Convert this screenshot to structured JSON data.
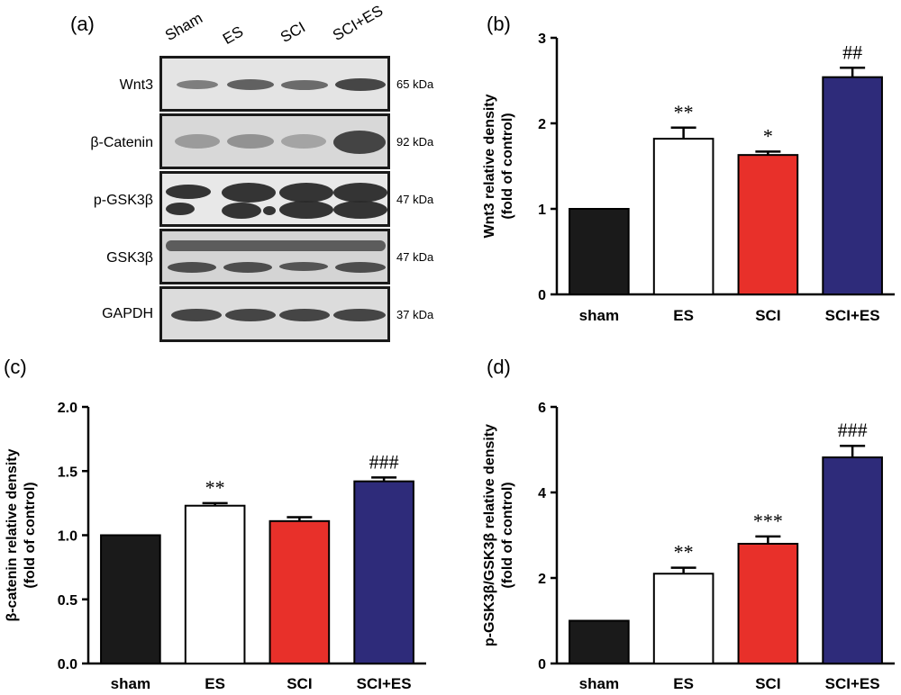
{
  "blot": {
    "panel_label": "(a)",
    "lanes": [
      "Sham",
      "ES",
      "SCI",
      "SCI+ES"
    ],
    "rows": [
      {
        "label": "Wnt3",
        "kda": "65 kDa"
      },
      {
        "label": "β-Catenin",
        "kda": "92 kDa"
      },
      {
        "label": "p-GSK3β",
        "kda": "47 kDa"
      },
      {
        "label": "GSK3β",
        "kda": "47 kDa"
      },
      {
        "label": "GAPDH",
        "kda": "37 kDa"
      }
    ]
  },
  "colors": {
    "sham": "#1a1a1a",
    "ES": "#ffffff",
    "SCI": "#e8302a",
    "SCI+ES": "#2e2b7a"
  },
  "chart_data": [
    {
      "panel_label": "(b)",
      "type": "bar",
      "categories": [
        "sham",
        "ES",
        "SCI",
        "SCI+ES"
      ],
      "values": [
        1.0,
        1.82,
        1.63,
        2.54
      ],
      "errors": [
        0,
        0.13,
        0.04,
        0.11
      ],
      "annotations": [
        "",
        "**",
        "*",
        "##"
      ],
      "ylabel": "Wnt3 relative density\n(fold of control)",
      "ylim": [
        0,
        3
      ],
      "yticks": [
        "0",
        "1",
        "2",
        "3"
      ]
    },
    {
      "panel_label": "(c)",
      "type": "bar",
      "categories": [
        "sham",
        "ES",
        "SCI",
        "SCI+ES"
      ],
      "values": [
        1.0,
        1.23,
        1.11,
        1.42
      ],
      "errors": [
        0,
        0.02,
        0.03,
        0.03
      ],
      "annotations": [
        "",
        "**",
        "",
        "###"
      ],
      "ylabel": "β-catenin relative density\n(fold of control)",
      "ylim": [
        0,
        2
      ],
      "yticks": [
        "0.0",
        "0.5",
        "1.0",
        "1.5",
        "2.0"
      ]
    },
    {
      "panel_label": "(d)",
      "type": "bar",
      "categories": [
        "sham",
        "ES",
        "SCI",
        "SCI+ES"
      ],
      "values": [
        1.0,
        2.1,
        2.8,
        4.82
      ],
      "errors": [
        0,
        0.14,
        0.17,
        0.27
      ],
      "annotations": [
        "",
        "**",
        "***",
        "###"
      ],
      "ylabel": "p-GSK3β/GSK3β relative density\n(fold of control)",
      "ylim": [
        0,
        6
      ],
      "yticks": [
        "0",
        "2",
        "4",
        "6"
      ]
    }
  ]
}
